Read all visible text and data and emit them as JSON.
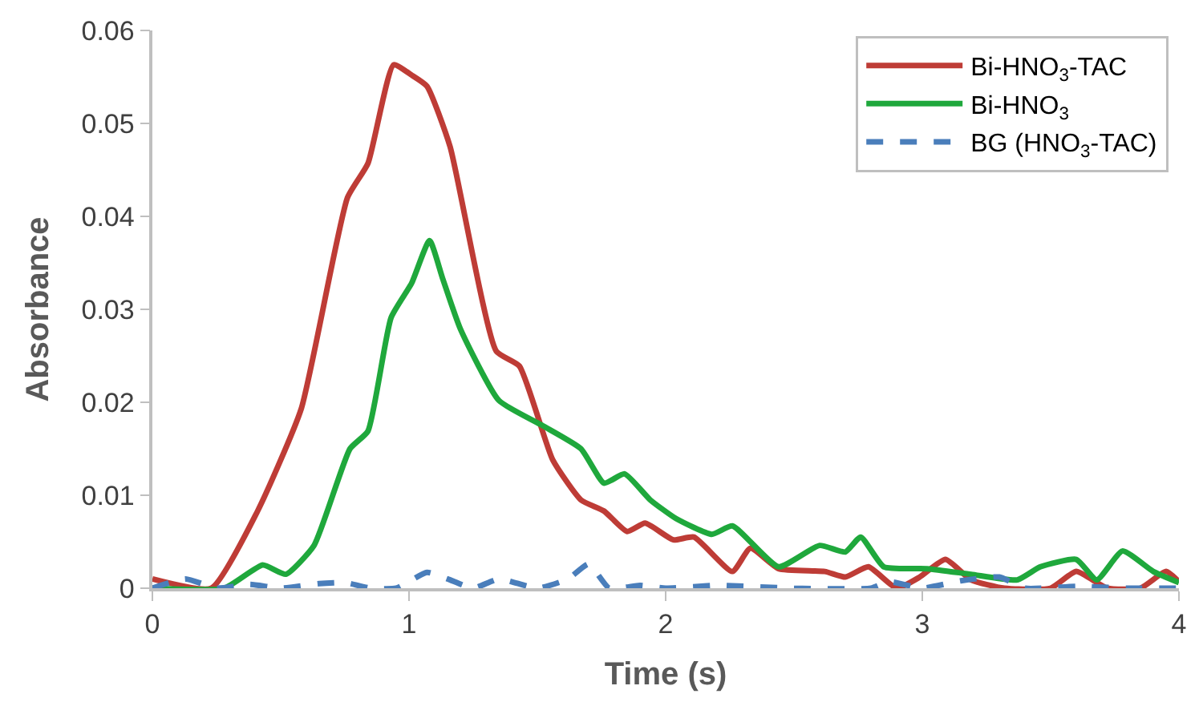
{
  "chart_data": {
    "type": "line",
    "xlabel": "Time (s)",
    "ylabel": "Absorbance",
    "xlim": [
      0,
      4
    ],
    "xticks": [
      0,
      1,
      2,
      3,
      4
    ],
    "ylim": [
      0,
      0.06
    ],
    "yticks": [
      0,
      0.01,
      0.02,
      0.03,
      0.04,
      0.05,
      0.06
    ],
    "legend": "top right",
    "line_style": "solid",
    "marker": "none",
    "series": [
      {
        "name": "Bi-HNO$_{3}$-TAC",
        "color": "#be3c36",
        "x": [
          0,
          0.23,
          0.41,
          0.58,
          0.76,
          0.84,
          0.94,
          1.01,
          1.07,
          1.16,
          1.34,
          1.43,
          1.56,
          1.67,
          1.76,
          1.85,
          1.92,
          2.03,
          2.11,
          2.26,
          2.33,
          2.44,
          2.62,
          2.7,
          2.79,
          2.9,
          2.99,
          3.09,
          3.19,
          3.32,
          3.5,
          3.6,
          3.72,
          3.85,
          3.95,
          4.0
        ],
        "values": [
          0.001,
          0,
          0.0083,
          0.0193,
          0.042,
          0.0457,
          0.0563,
          0.0552,
          0.054,
          0.0475,
          0.0255,
          0.0239,
          0.0138,
          0.0095,
          0.0083,
          0.0061,
          0.007,
          0.0052,
          0.0055,
          0.0018,
          0.0043,
          0.0021,
          0.0018,
          0.0012,
          0.0023,
          0,
          0.0012,
          0.0031,
          0.0009,
          0,
          0,
          0.0018,
          0,
          0,
          0.0018,
          0.0007
        ]
      },
      {
        "name": "Bi-HNO$_{3}$",
        "color": "#1fa83c",
        "x": [
          0,
          0.28,
          0.43,
          0.52,
          0.63,
          0.77,
          0.84,
          0.93,
          1.01,
          1.08,
          1.13,
          1.2,
          1.35,
          1.52,
          1.67,
          1.76,
          1.84,
          1.94,
          2.04,
          2.18,
          2.26,
          2.44,
          2.6,
          2.7,
          2.76,
          2.85,
          3.02,
          3.19,
          3.37,
          3.46,
          3.6,
          3.68,
          3.78,
          3.9,
          4.0
        ],
        "values": [
          0,
          0,
          0.0025,
          0.0015,
          0.0046,
          0.015,
          0.0169,
          0.0291,
          0.0328,
          0.0374,
          0.0334,
          0.0279,
          0.0202,
          0.0175,
          0.015,
          0.0113,
          0.0123,
          0.0095,
          0.0075,
          0.0058,
          0.0067,
          0.0023,
          0.0046,
          0.0039,
          0.0055,
          0.0023,
          0.0021,
          0.0015,
          0.0009,
          0.0023,
          0.0031,
          0.0009,
          0.004,
          0.0018,
          0.0006
        ]
      },
      {
        "name": "BG (HNO$_{3}$-TAC)",
        "color": "#4a7ebb",
        "line_style": "dashed",
        "x": [
          0,
          0.13,
          0.25,
          0.38,
          0.5,
          0.65,
          0.75,
          0.85,
          0.95,
          1.07,
          1.15,
          1.25,
          1.35,
          1.5,
          1.62,
          1.7,
          1.78,
          1.9,
          2.0,
          2.2,
          2.5,
          2.8,
          2.87,
          3.0,
          3.15,
          3.3,
          3.4,
          3.6,
          3.8,
          4.0
        ],
        "values": [
          0,
          0.001,
          0,
          0.0004,
          0,
          0.0005,
          0.0006,
          0,
          0,
          0.0017,
          0.001,
          0,
          0.001,
          0,
          0.001,
          0.0026,
          0,
          0.0003,
          0,
          0.0003,
          0,
          0,
          0.0007,
          0,
          0.0008,
          0.0012,
          0,
          0.0002,
          0,
          0
        ]
      }
    ]
  }
}
